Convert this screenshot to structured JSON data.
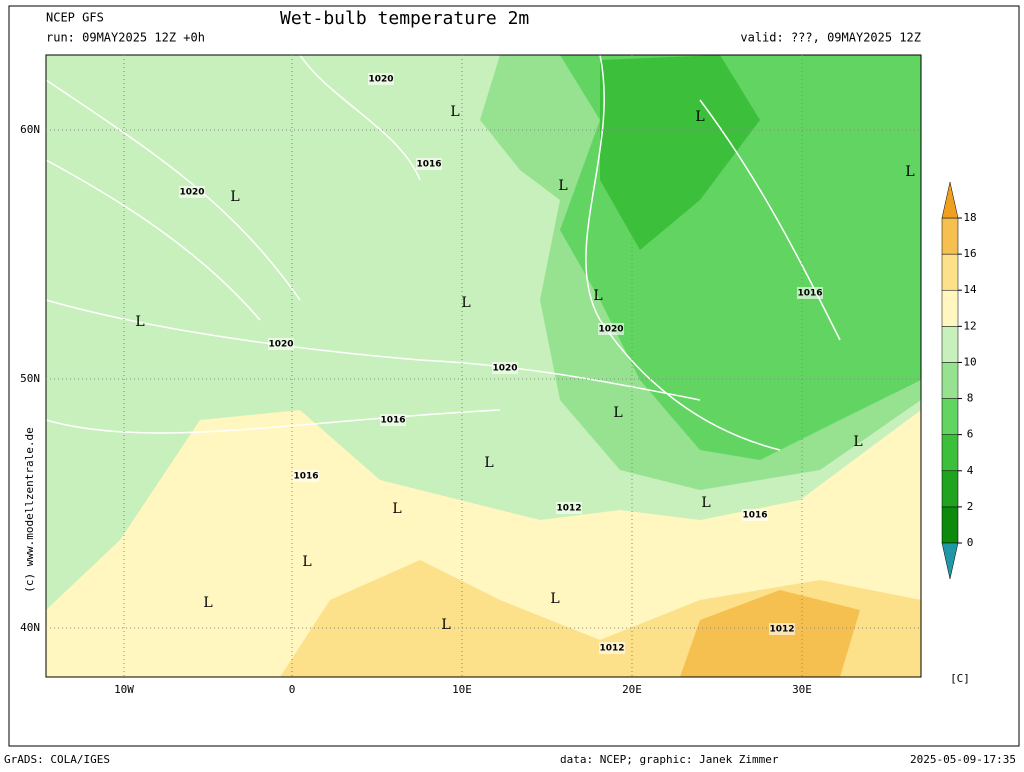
{
  "header": {
    "model": "NCEP GFS",
    "run": "run: 09MAY2025 12Z +0h",
    "title": "Wet-bulb temperature 2m",
    "valid": "valid: ???, 09MAY2025 12Z"
  },
  "map": {
    "lon_labels": [
      "10W",
      "0",
      "10E",
      "20E",
      "30E"
    ],
    "lat_labels": [
      "60N",
      "50N",
      "40N"
    ],
    "pressure_labels": [
      "1020",
      "1016",
      "1020",
      "1020",
      "1020",
      "1020",
      "1016",
      "1016",
      "1012",
      "1016",
      "1016",
      "1012",
      "1012"
    ],
    "lows": [
      "L",
      "L",
      "L",
      "L",
      "L",
      "L",
      "L",
      "L",
      "L",
      "L",
      "L",
      "L",
      "L",
      "L",
      "L",
      "L",
      "L"
    ],
    "side_credit": "(c) www.modellzentrale.de"
  },
  "colorbar": {
    "ticks": [
      0,
      2,
      4,
      6,
      8,
      10,
      12,
      14,
      16,
      18
    ],
    "colors": [
      "#0b8a0b",
      "#20a420",
      "#3cc03c",
      "#62d462",
      "#96e290",
      "#c8f0bc",
      "#fff6c0",
      "#fce08a",
      "#f6c050"
    ],
    "below_color": "#2098a8",
    "above_color": "#f0a020",
    "unit": "[C]"
  },
  "footer": {
    "left": "GrADS: COLA/IGES",
    "credit": "data: NCEP; graphic: Janek Zimmer",
    "timestamp": "2025-05-09-17:35"
  }
}
